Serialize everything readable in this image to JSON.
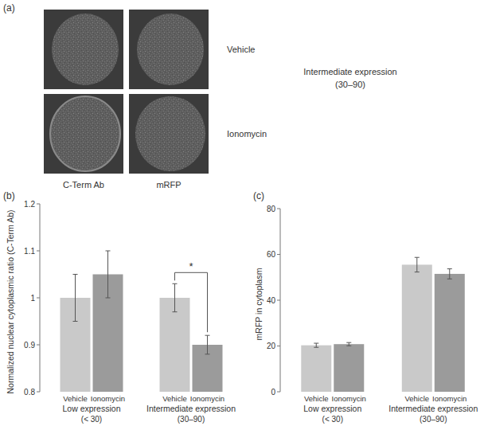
{
  "panel_a": {
    "label": "(a)",
    "columns": [
      "C-Term Ab",
      "mRFP"
    ],
    "rows": [
      "Vehicle",
      "Ionomycin"
    ],
    "note": "Intermediate expression",
    "note_range": "(30–90)"
  },
  "chart_data": [
    {
      "type": "bar",
      "panel_label": "(b)",
      "y_label": "Normalized nuclear cytoplasmic ratio (C-Term Ab)",
      "categories": [
        "Low expression",
        "Intermediate expression"
      ],
      "category_sublabels": [
        "(< 30)",
        "(30–90)"
      ],
      "series": [
        {
          "name": "Vehicle",
          "color": "#c9c9c9",
          "values": [
            1.0,
            1.0
          ],
          "errors": [
            0.05,
            0.03
          ]
        },
        {
          "name": "Ionomycin",
          "color": "#9b9b9b",
          "values": [
            1.05,
            0.9
          ],
          "errors": [
            0.05,
            0.02
          ]
        }
      ],
      "ylim": [
        0.8,
        1.2
      ],
      "yticks": [
        0.8,
        0.9,
        1,
        1.1,
        1.2
      ],
      "grid": false,
      "annotations": [
        {
          "text": "*",
          "category": "Intermediate expression"
        }
      ]
    },
    {
      "type": "bar",
      "panel_label": "(c)",
      "y_label": "mRFP in cytoplasm",
      "categories": [
        "Low expression",
        "Intermediate expression"
      ],
      "category_sublabels": [
        "(< 30)",
        "(30–90)"
      ],
      "series": [
        {
          "name": "Vehicle",
          "color": "#c9c9c9",
          "values": [
            20.3,
            55.5
          ],
          "errors": [
            0.9,
            3.2
          ]
        },
        {
          "name": "Ionomycin",
          "color": "#9b9b9b",
          "values": [
            20.8,
            51.5
          ],
          "errors": [
            0.7,
            2.2
          ]
        }
      ],
      "ylim": [
        0,
        80
      ],
      "yticks": [
        0,
        20,
        40,
        60,
        80
      ],
      "grid": false
    }
  ]
}
